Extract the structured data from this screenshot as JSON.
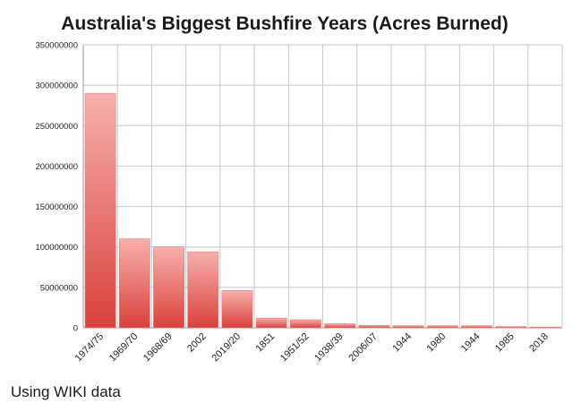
{
  "chart_data": {
    "type": "bar",
    "title": "Australia's Biggest Bushfire Years (Acres Burned)",
    "xlabel": "",
    "ylabel": "",
    "categories": [
      "1974/75",
      "1969/70",
      "1968/69",
      "2002",
      "2019/20",
      "1851",
      "1951/52",
      "1938/39",
      "2006/07",
      "1944",
      "1980",
      "1944",
      "1985",
      "2018"
    ],
    "values": [
      290000000,
      110000000,
      100000000,
      94000000,
      46000000,
      12000000,
      10000000,
      5000000,
      3000000,
      2500000,
      2500000,
      2500000,
      1500000,
      1000000
    ],
    "ylim": [
      0,
      350000000
    ],
    "yticks": [
      "0",
      "50000000",
      "100000000",
      "150000000",
      "200000000",
      "250000000",
      "300000000",
      "350000000"
    ],
    "grid": true,
    "bar_color_top": "#f7b0ac",
    "bar_color_bottom": "#d9413b"
  },
  "caption": "Using WIKI data"
}
